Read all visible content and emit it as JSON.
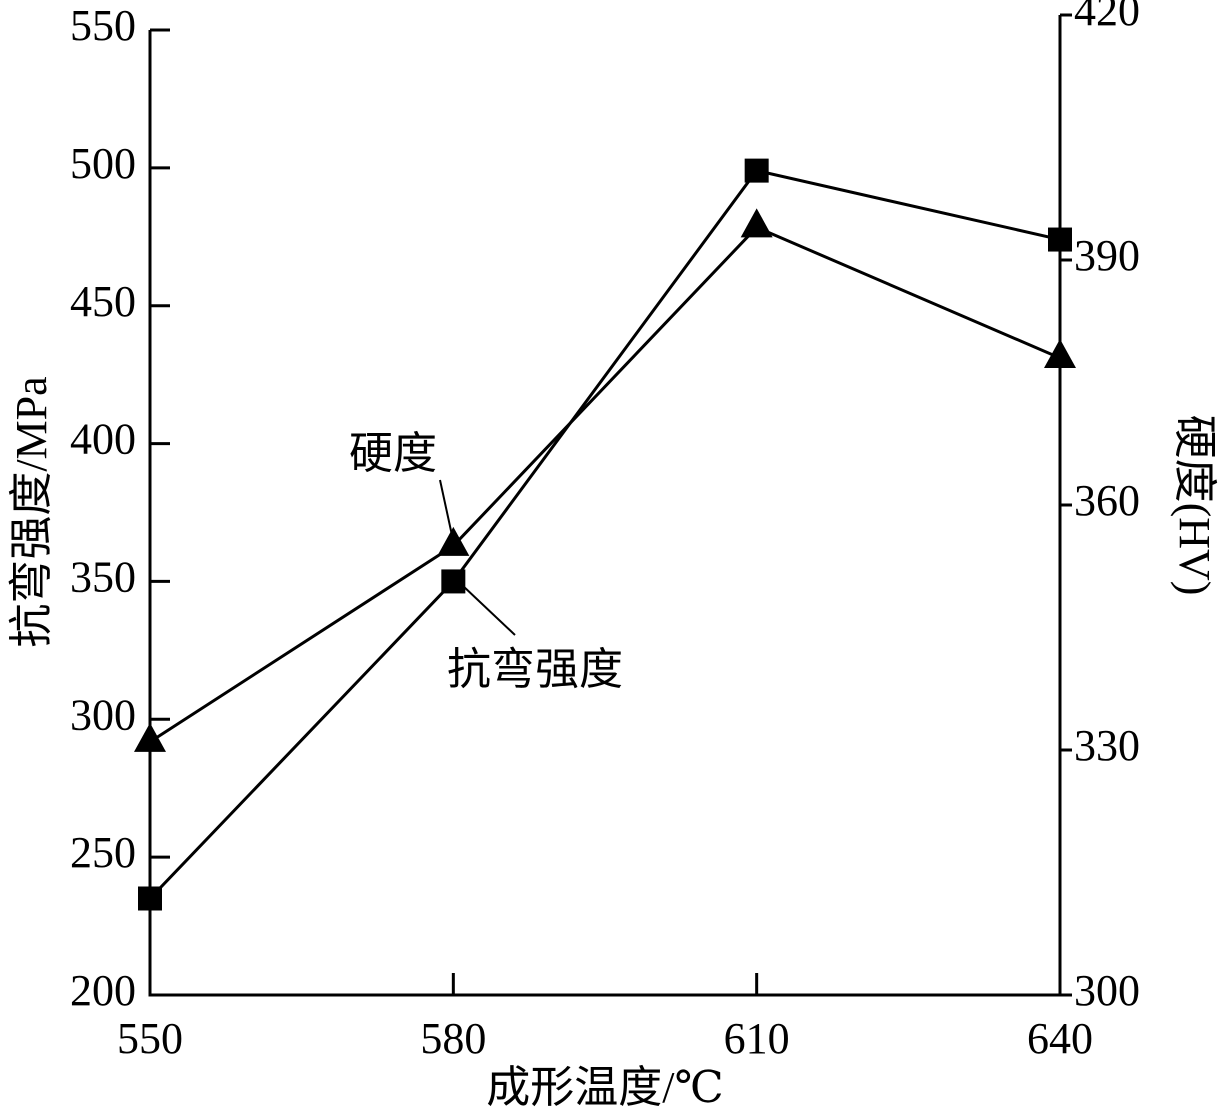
{
  "chart_data": {
    "type": "line",
    "x_label": "成形温度/℃",
    "y_label": "抗弯强度/MPa",
    "y2_label": "硬度(HV)",
    "x": [
      550,
      580,
      610,
      640
    ],
    "xlim": [
      550,
      640
    ],
    "xticks": [
      550,
      580,
      610,
      640
    ],
    "ylim": [
      200,
      550
    ],
    "yticks": [
      200,
      250,
      300,
      350,
      400,
      450,
      500,
      550
    ],
    "y2lim": [
      300,
      420
    ],
    "y2ticks": [
      300,
      330,
      360,
      390,
      420
    ],
    "series": [
      {
        "name": "抗弯强度",
        "color": "#000000",
        "marker": "square",
        "values": [
          235,
          350,
          499,
          474
        ]
      },
      {
        "name": "硬度",
        "color": "#000000",
        "marker": "triangle",
        "axis": "y2",
        "values": [
          331,
          355,
          394,
          378
        ]
      }
    ]
  }
}
